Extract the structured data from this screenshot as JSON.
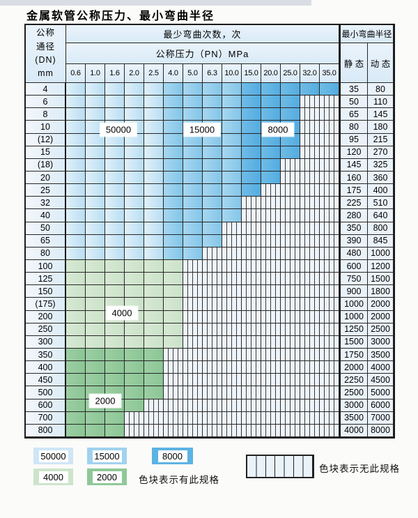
{
  "page": {
    "title": "金属软管公称压力、最小弯曲半径"
  },
  "table": {
    "header": {
      "dn_label_lines": [
        "公称",
        "通径",
        "(DN)",
        "mm"
      ],
      "bend_cycles_label": "最少弯曲次数，次",
      "pressure_label": "公称压力（PN）MPa",
      "radius_label": "最小弯曲半径",
      "static_label": "静 态",
      "dynamic_label": "动 态",
      "pressure_columns": [
        "0.6",
        "1.0",
        "1.6",
        "2.0",
        "2.5",
        "4.0",
        "5.0",
        "6.3",
        "10.0",
        "15.0",
        "20.0",
        "25.0",
        "32.0",
        "35.0"
      ]
    },
    "zones": {
      "blue": [
        {
          "cycles": "50000",
          "first_col": "0.6",
          "last_col": "2.5"
        },
        {
          "cycles": "15000",
          "first_col": "4.0",
          "last_col": "10.0"
        },
        {
          "cycles": "8000",
          "first_col": "15.0",
          "last_col": "35.0"
        }
      ],
      "green": [
        {
          "cycles": "4000",
          "dn_range": "100-300"
        },
        {
          "cycles": "2000",
          "dn_range": "350-800"
        }
      ]
    },
    "rows": [
      {
        "dn": "4",
        "zone": "blue",
        "last_col": "35.0",
        "static": "35",
        "dynamic": "80"
      },
      {
        "dn": "6",
        "zone": "blue",
        "last_col": "25.0",
        "static": "50",
        "dynamic": "110"
      },
      {
        "dn": "8",
        "zone": "blue",
        "last_col": "25.0",
        "static": "65",
        "dynamic": "145"
      },
      {
        "dn": "10",
        "zone": "blue",
        "last_col": "25.0",
        "static": "80",
        "dynamic": "180"
      },
      {
        "dn": "(12)",
        "zone": "blue",
        "last_col": "25.0",
        "static": "95",
        "dynamic": "215"
      },
      {
        "dn": "15",
        "zone": "blue",
        "last_col": "25.0",
        "static": "120",
        "dynamic": "270"
      },
      {
        "dn": "(18)",
        "zone": "blue",
        "last_col": "20.0",
        "static": "145",
        "dynamic": "325"
      },
      {
        "dn": "20",
        "zone": "blue",
        "last_col": "20.0",
        "static": "160",
        "dynamic": "360"
      },
      {
        "dn": "25",
        "zone": "blue",
        "last_col": "15.0",
        "static": "175",
        "dynamic": "400"
      },
      {
        "dn": "32",
        "zone": "blue",
        "last_col": "10.0",
        "static": "225",
        "dynamic": "510"
      },
      {
        "dn": "40",
        "zone": "blue",
        "last_col": "10.0",
        "static": "280",
        "dynamic": "640"
      },
      {
        "dn": "50",
        "zone": "blue",
        "last_col": "6.3",
        "static": "350",
        "dynamic": "800"
      },
      {
        "dn": "65",
        "zone": "blue",
        "last_col": "6.3",
        "static": "390",
        "dynamic": "845"
      },
      {
        "dn": "80",
        "zone": "blue",
        "last_col": "5.0",
        "static": "480",
        "dynamic": "1000"
      },
      {
        "dn": "100",
        "zone": "4000",
        "last_col": "4.0",
        "static": "600",
        "dynamic": "1200"
      },
      {
        "dn": "125",
        "zone": "4000",
        "last_col": "4.0",
        "static": "750",
        "dynamic": "1500"
      },
      {
        "dn": "150",
        "zone": "4000",
        "last_col": "4.0",
        "static": "900",
        "dynamic": "1800"
      },
      {
        "dn": "(175)",
        "zone": "4000",
        "last_col": "4.0",
        "static": "1000",
        "dynamic": "2000"
      },
      {
        "dn": "200",
        "zone": "4000",
        "last_col": "4.0",
        "static": "1000",
        "dynamic": "2000"
      },
      {
        "dn": "250",
        "zone": "4000",
        "last_col": "4.0",
        "static": "1250",
        "dynamic": "2500"
      },
      {
        "dn": "300",
        "zone": "4000",
        "last_col": "4.0",
        "static": "1500",
        "dynamic": "3000"
      },
      {
        "dn": "350",
        "zone": "2000",
        "last_col": "2.5",
        "static": "1750",
        "dynamic": "3500"
      },
      {
        "dn": "400",
        "zone": "2000",
        "last_col": "2.5",
        "static": "2000",
        "dynamic": "4000"
      },
      {
        "dn": "450",
        "zone": "2000",
        "last_col": "2.5",
        "static": "2250",
        "dynamic": "4500"
      },
      {
        "dn": "500",
        "zone": "2000",
        "last_col": "2.5",
        "static": "2500",
        "dynamic": "5000"
      },
      {
        "dn": "600",
        "zone": "2000",
        "last_col": "2.0",
        "static": "3000",
        "dynamic": "6000"
      },
      {
        "dn": "700",
        "zone": "2000",
        "last_col": "1.6",
        "static": "3500",
        "dynamic": "7000"
      },
      {
        "dn": "800",
        "zone": "2000",
        "last_col": "1.6",
        "static": "4000",
        "dynamic": "8000"
      }
    ],
    "overlays": [
      {
        "text": "50000"
      },
      {
        "text": "15000"
      },
      {
        "text": "8000"
      },
      {
        "text": "4000"
      },
      {
        "text": "2000"
      }
    ]
  },
  "legend": {
    "items": [
      {
        "label": "50000",
        "color": "#cfe6f6"
      },
      {
        "label": "15000",
        "color": "#a0d2ee"
      },
      {
        "label": "8000",
        "color": "#5db3e2"
      },
      {
        "label": "4000",
        "color": "#cde4cb"
      },
      {
        "label": "2000",
        "color": "#8fc898"
      }
    ],
    "has_spec_note": "色块表示有此规格",
    "no_spec_note": "色块表示无此规格"
  }
}
